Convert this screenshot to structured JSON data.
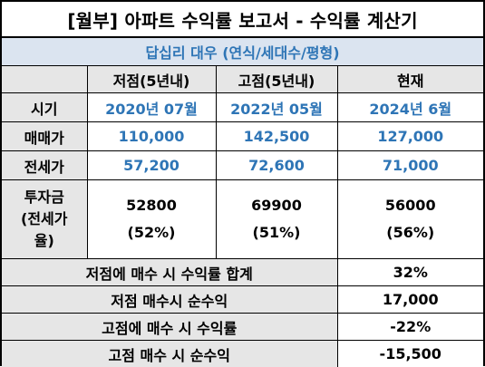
{
  "title": "[월부] 아파트 수익률 보고서 - 수익률 계산기",
  "subtitle": "답십리 대우 (연식/세대수/평형)",
  "columns": [
    "저점(5년내)",
    "고점(5년내)",
    "현재"
  ],
  "rows": {
    "period": {
      "label": "시기",
      "values": [
        "2020년 07월",
        "2022년 05월",
        "2024년 6월"
      ]
    },
    "sale_price": {
      "label": "매매가",
      "values": [
        "110,000",
        "142,500",
        "127,000"
      ]
    },
    "jeonse_price": {
      "label": "전세가",
      "values": [
        "57,200",
        "72,600",
        "71,000"
      ]
    },
    "investment": {
      "label_lines": [
        "투자금",
        "(전세가",
        "율)"
      ],
      "amounts": [
        "52800",
        "69900",
        "56000"
      ],
      "ratios": [
        "(52%)",
        "(51%)",
        "(56%)"
      ]
    }
  },
  "summary": [
    {
      "label": "저점에 매수 시 수익률 합계",
      "value": "32%"
    },
    {
      "label": "저점 매수시 순수익",
      "value": "17,000"
    },
    {
      "label": "고점에 매수 시 수익률",
      "value": "-22%"
    },
    {
      "label": "고점 매수 시 순수익",
      "value": "-15,500"
    }
  ],
  "colors": {
    "accent_blue": "#2e75b6",
    "header_gray": "#e6e6e6",
    "subtitle_bg": "#dbe4f0"
  }
}
